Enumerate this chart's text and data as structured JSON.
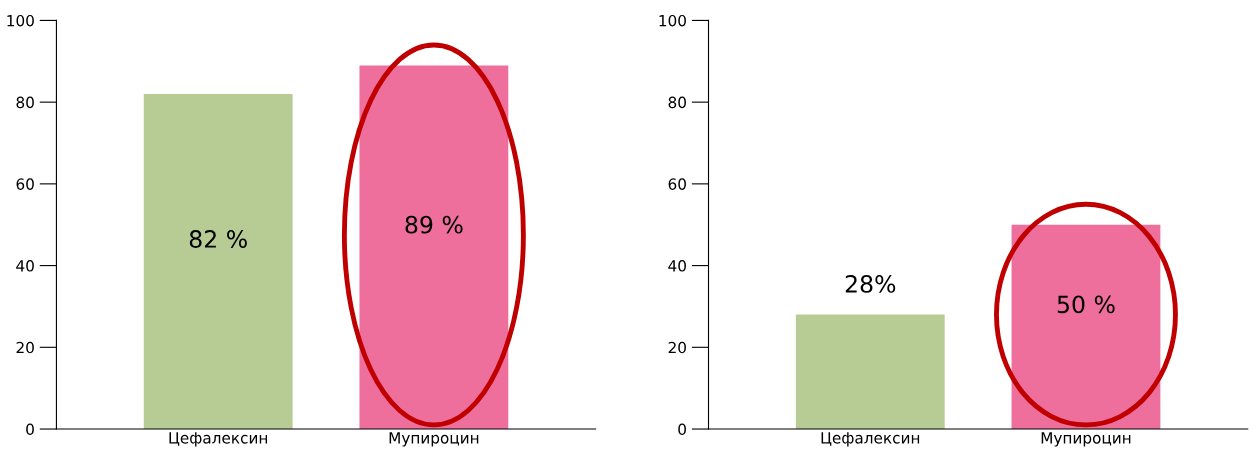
{
  "chart_data": [
    {
      "type": "bar",
      "categories": [
        "Цефалексин",
        "Мупироцин"
      ],
      "values": [
        82,
        89
      ],
      "colors": [
        "#b7cc94",
        "#ee6f9b"
      ],
      "value_labels": [
        "82 %",
        "89 %"
      ],
      "ylim": [
        0,
        100
      ],
      "yticks": [
        0,
        20,
        40,
        60,
        80,
        100
      ],
      "grid": false,
      "legend": false
    },
    {
      "type": "bar",
      "categories": [
        "Цефалексин",
        "Мупироцин"
      ],
      "values": [
        28,
        50
      ],
      "colors": [
        "#b7cc94",
        "#ee6f9b"
      ],
      "value_labels": [
        "28%",
        "50 %"
      ],
      "ylim": [
        0,
        100
      ],
      "yticks": [
        0,
        20,
        40,
        60,
        80,
        100
      ],
      "grid": false,
      "legend": false
    }
  ]
}
